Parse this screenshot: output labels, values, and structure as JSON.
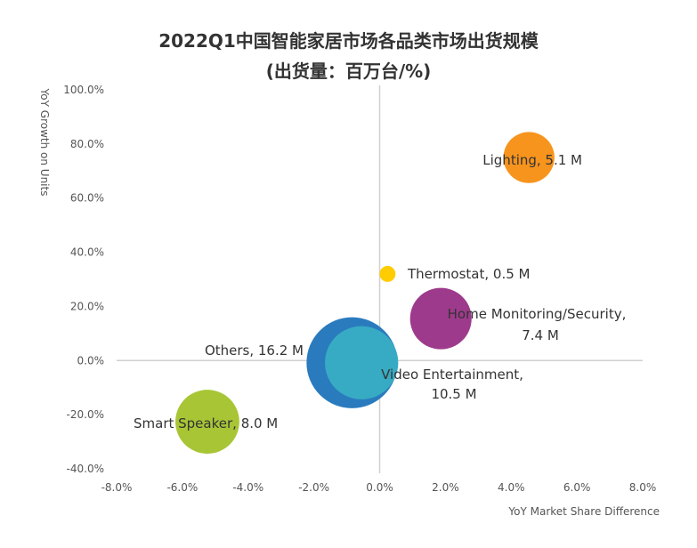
{
  "chart_data": {
    "type": "bubble",
    "title": "2022Q1中国智能家居市场各品类市场出货规模",
    "subtitle": "(出货量：百万台/%)",
    "xlabel": "YoY Market Share Difference",
    "ylabel": "YoY Growth on Units",
    "xlim": [
      -8,
      8
    ],
    "ylim": [
      -40,
      100
    ],
    "x_ticks": [
      "-8.0%",
      "-6.0%",
      "-4.0%",
      "-2.0%",
      "0.0%",
      "2.0%",
      "4.0%",
      "6.0%",
      "8.0%"
    ],
    "y_ticks": [
      "-40.0%",
      "-20.0%",
      "0.0%",
      "20.0%",
      "40.0%",
      "60.0%",
      "80.0%",
      "100.0%"
    ],
    "grid": false,
    "points": [
      {
        "name": "Others",
        "x": -0.84,
        "y": -0.8,
        "size": 16.2,
        "label": [
          "Others,  16.2 M"
        ],
        "color": "#2A7BBE"
      },
      {
        "name": "Video Entertainment",
        "x": -0.55,
        "y": -0.8,
        "size": 10.5,
        "label": [
          "Video Entertainment,",
          "10.5 M"
        ],
        "color": "#38ABC4"
      },
      {
        "name": "Lighting",
        "x": 4.54,
        "y": 75,
        "size": 5.1,
        "label": [
          "Lighting,  5.1 M"
        ],
        "color": "#F7941D"
      },
      {
        "name": "Thermostat",
        "x": 0.24,
        "y": 32,
        "size": 0.5,
        "label": [
          "Thermostat,  0.5 M"
        ],
        "color": "#FFCC00"
      },
      {
        "name": "Home Monitoring/Security",
        "x": 1.86,
        "y": 15.5,
        "size": 7.4,
        "label": [
          "Home Monitoring/Security,",
          "7.4 M"
        ],
        "color": "#9E3A8C"
      },
      {
        "name": "Smart Speaker",
        "x": -5.24,
        "y": -22.6,
        "size": 8.0,
        "label": [
          "Smart Speaker,  8.0 M"
        ],
        "color": "#A8C536"
      }
    ]
  }
}
